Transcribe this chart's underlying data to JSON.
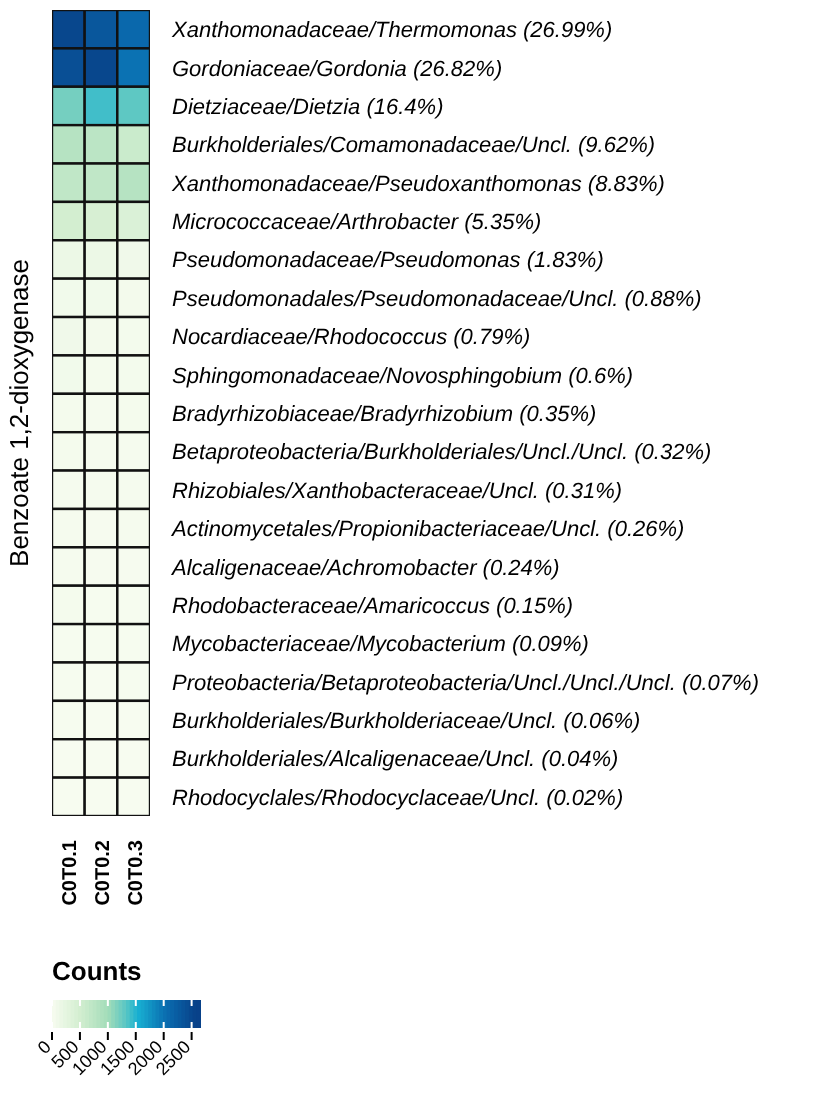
{
  "chart_data": {
    "type": "heatmap",
    "ylabel": "Benzoate 1,2-dioxygenase",
    "clabel": "Counts",
    "categories": [
      "C0T0.1",
      "C0T0.2",
      "C0T0.3"
    ],
    "y_categories": [
      "Xanthomonadaceae/Thermomonas (26.99%)",
      "Gordoniaceae/Gordonia (26.82%)",
      "Dietziaceae/Dietzia (16.4%)",
      "Burkholderiales/Comamonadaceae/Uncl. (9.62%)",
      "Xanthomonadaceae/Pseudoxanthomonas (8.83%)",
      "Micrococcaceae/Arthrobacter (5.35%)",
      "Pseudomonadaceae/Pseudomonas (1.83%)",
      "Pseudomonadales/Pseudomonadaceae/Uncl. (0.88%)",
      "Nocardiaceae/Rhodococcus (0.79%)",
      "Sphingomonadaceae/Novosphingobium (0.6%)",
      "Bradyrhizobiaceae/Bradyrhizobium (0.35%)",
      "Betaproteobacteria/Burkholderiales/Uncl./Uncl. (0.32%)",
      "Rhizobiales/Xanthobacteraceae/Uncl. (0.31%)",
      "Actinomycetales/Propionibacteriaceae/Uncl. (0.26%)",
      "Alcaligenaceae/Achromobacter (0.24%)",
      "Rhodobacteraceae/Amaricoccus (0.15%)",
      "Mycobacteriaceae/Mycobacterium (0.09%)",
      "Proteobacteria/Betaproteobacteria/Uncl./Uncl./Uncl. (0.07%)",
      "Burkholderiales/Burkholderiaceae/Uncl. (0.06%)",
      "Burkholderiales/Alcaligenaceae/Uncl. (0.04%)",
      "Rhodocyclales/Rhodocyclaceae/Uncl. (0.02%)"
    ],
    "cells": [
      [
        2500,
        2300,
        2100
      ],
      [
        2400,
        2500,
        2000
      ],
      [
        1200,
        1400,
        1300
      ],
      [
        800,
        750,
        600
      ],
      [
        700,
        700,
        800
      ],
      [
        500,
        450,
        400
      ],
      [
        150,
        150,
        100
      ],
      [
        80,
        80,
        60
      ],
      [
        100,
        60,
        50
      ],
      [
        80,
        40,
        50
      ],
      [
        40,
        30,
        40
      ],
      [
        40,
        30,
        30
      ],
      [
        30,
        30,
        30
      ],
      [
        30,
        20,
        30
      ],
      [
        30,
        20,
        20
      ],
      [
        40,
        10,
        10
      ],
      [
        10,
        10,
        10
      ],
      [
        10,
        5,
        10
      ],
      [
        10,
        5,
        5
      ],
      [
        5,
        5,
        5
      ],
      [
        5,
        0,
        0
      ]
    ],
    "clim": [
      0,
      2650
    ],
    "cticks": [
      0,
      500,
      1000,
      1500,
      2000,
      2500
    ]
  }
}
